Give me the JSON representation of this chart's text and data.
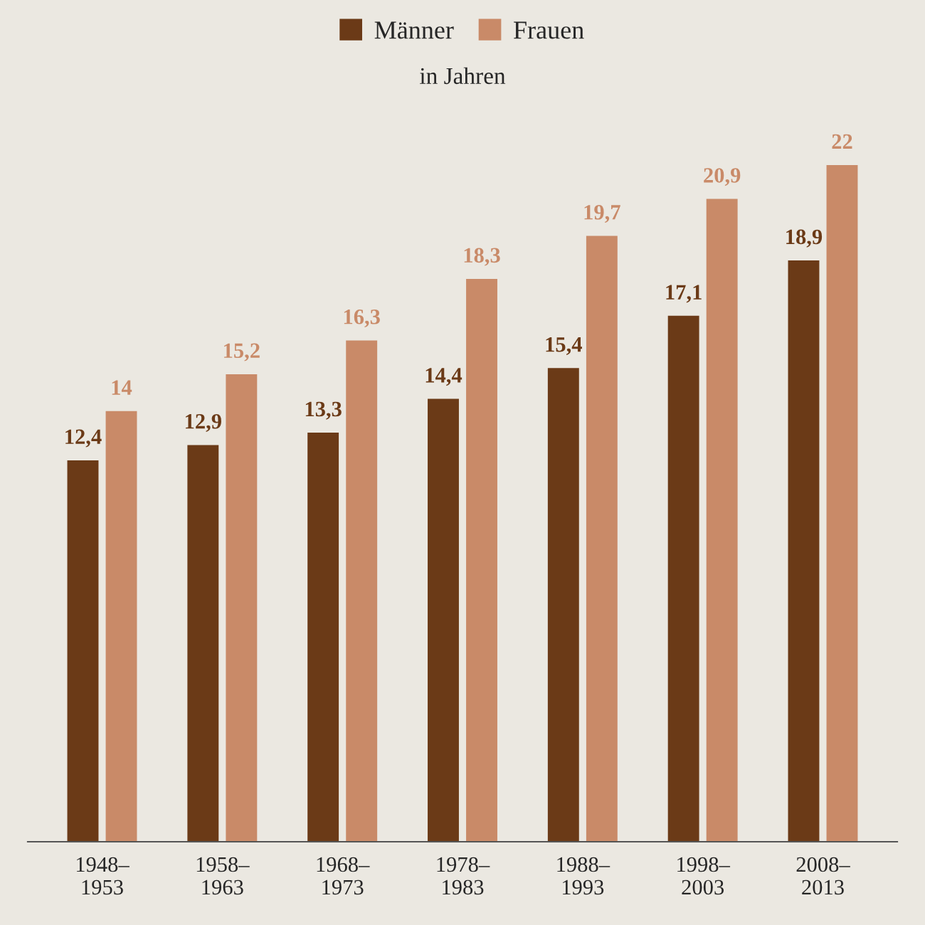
{
  "chart_data": {
    "type": "bar",
    "subtitle": "in Jahren",
    "categories": [
      "1948–\n1953",
      "1958–\n1963",
      "1968–\n1973",
      "1978–\n1983",
      "1988–\n1993",
      "1998–\n2003",
      "2008–\n2013"
    ],
    "series": [
      {
        "name": "Männer",
        "color": "#6b3a17",
        "values": [
          12.4,
          12.9,
          13.3,
          14.4,
          15.4,
          17.1,
          18.9
        ],
        "value_labels": [
          "12,4",
          "12,9",
          "13,3",
          "14,4",
          "15,4",
          "17,1",
          "18,9"
        ]
      },
      {
        "name": "Frauen",
        "color": "#c98a68",
        "values": [
          14,
          15.2,
          16.3,
          18.3,
          19.7,
          20.9,
          22
        ],
        "value_labels": [
          "14",
          "15,2",
          "16,3",
          "18,3",
          "19,7",
          "20,9",
          "22"
        ]
      }
    ],
    "legend": "top",
    "grid": false
  }
}
